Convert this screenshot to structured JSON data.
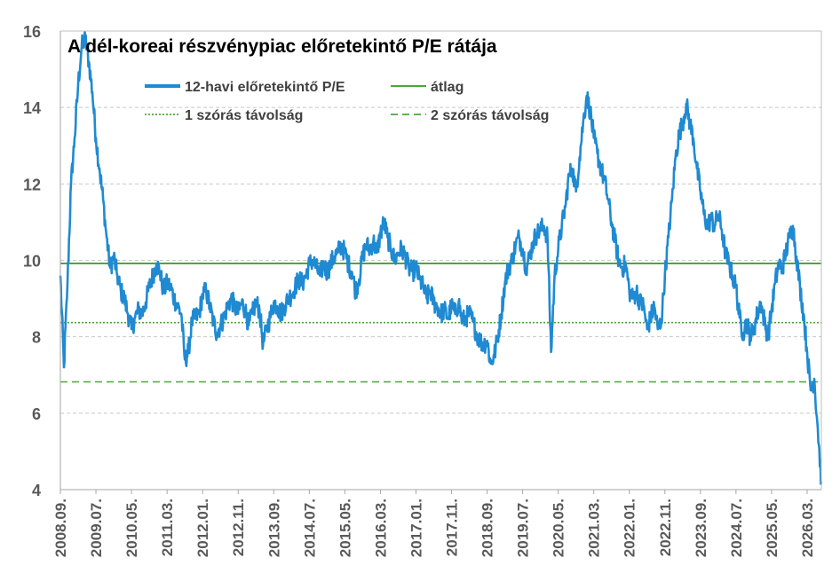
{
  "chart_data": {
    "type": "line",
    "title": "A dél-koreai részvénypiac előretekintő P/E rátája",
    "xlabel": "",
    "ylabel": "",
    "ylim": [
      4,
      16
    ],
    "yticks": [
      4,
      6,
      8,
      10,
      12,
      14,
      16
    ],
    "xlim": [
      "2008.09.",
      "2026.07."
    ],
    "xticks": [
      "2008.09.",
      "2009.07.",
      "2010.05.",
      "2011.03.",
      "2012.01.",
      "2012.11.",
      "2013.09.",
      "2014.07.",
      "2015.05.",
      "2016.03.",
      "2017.01.",
      "2017.11.",
      "2018.09.",
      "2019.07.",
      "2020.05.",
      "2021.03.",
      "2022.01.",
      "2022.11.",
      "2023.09.",
      "2024.07.",
      "2025.05.",
      "2026.03."
    ],
    "grid": "horizontal",
    "legend_position": "top-left",
    "colors": {
      "series": "#1f8ad2",
      "reference": "#4ba63a"
    },
    "reference_lines": [
      {
        "name": "átlag",
        "value": 9.92,
        "style": "solid"
      },
      {
        "name": "1 szórás távolság",
        "value": 8.37,
        "style": "dotted"
      },
      {
        "name": "2 szórás távolság",
        "value": 6.82,
        "style": "dashed"
      }
    ],
    "series": [
      {
        "name": "12-havi előretekintő P/E",
        "points": [
          [
            "2008.09.",
            9.6
          ],
          [
            "2008.10.",
            7.2
          ],
          [
            "2008.11.",
            9.4
          ],
          [
            "2008.12.",
            12.0
          ],
          [
            "2009.01.",
            13.2
          ],
          [
            "2009.02.",
            14.6
          ],
          [
            "2009.03.",
            15.6
          ],
          [
            "2009.04.",
            15.8
          ],
          [
            "2009.05.",
            15.2
          ],
          [
            "2009.06.",
            14.4
          ],
          [
            "2009.07.",
            13.2
          ],
          [
            "2009.08.",
            12.4
          ],
          [
            "2009.09.",
            11.6
          ],
          [
            "2009.10.",
            10.6
          ],
          [
            "2009.11.",
            9.8
          ],
          [
            "2009.12.",
            10.1
          ],
          [
            "2010.01.",
            9.6
          ],
          [
            "2010.02.",
            9.2
          ],
          [
            "2010.03.",
            9.0
          ],
          [
            "2010.04.",
            8.6
          ],
          [
            "2010.05.",
            8.2
          ],
          [
            "2010.06.",
            8.5
          ],
          [
            "2010.07.",
            8.7
          ],
          [
            "2010.08.",
            8.6
          ],
          [
            "2010.09.",
            8.9
          ],
          [
            "2010.10.",
            9.3
          ],
          [
            "2010.11.",
            9.6
          ],
          [
            "2010.12.",
            9.9
          ],
          [
            "2011.01.",
            9.7
          ],
          [
            "2011.02.",
            9.2
          ],
          [
            "2011.03.",
            9.4
          ],
          [
            "2011.04.",
            9.3
          ],
          [
            "2011.05.",
            9.0
          ],
          [
            "2011.06.",
            8.8
          ],
          [
            "2011.07.",
            8.6
          ],
          [
            "2011.08.",
            7.4
          ],
          [
            "2011.09.",
            7.6
          ],
          [
            "2011.10.",
            8.4
          ],
          [
            "2011.11.",
            8.5
          ],
          [
            "2011.12.",
            8.6
          ],
          [
            "2012.01.",
            9.1
          ],
          [
            "2012.02.",
            9.2
          ],
          [
            "2012.03.",
            8.8
          ],
          [
            "2012.04.",
            8.4
          ],
          [
            "2012.05.",
            8.1
          ],
          [
            "2012.06.",
            8.3
          ],
          [
            "2012.07.",
            8.5
          ],
          [
            "2012.08.",
            8.8
          ],
          [
            "2012.09.",
            9.0
          ],
          [
            "2012.10.",
            8.8
          ],
          [
            "2012.11.",
            8.6
          ],
          [
            "2012.12.",
            8.9
          ],
          [
            "2013.01.",
            8.7
          ],
          [
            "2013.02.",
            8.3
          ],
          [
            "2013.03.",
            8.6
          ],
          [
            "2013.04.",
            8.9
          ],
          [
            "2013.05.",
            8.7
          ],
          [
            "2013.06.",
            7.8
          ],
          [
            "2013.07.",
            8.2
          ],
          [
            "2013.08.",
            8.5
          ],
          [
            "2013.09.",
            8.9
          ],
          [
            "2013.10.",
            8.8
          ],
          [
            "2013.11.",
            8.6
          ],
          [
            "2013.12.",
            8.8
          ],
          [
            "2014.01.",
            9.0
          ],
          [
            "2014.02.",
            9.1
          ],
          [
            "2014.03.",
            9.3
          ],
          [
            "2014.04.",
            9.5
          ],
          [
            "2014.05.",
            9.4
          ],
          [
            "2014.06.",
            9.6
          ],
          [
            "2014.07.",
            9.9
          ],
          [
            "2014.08.",
            10.0
          ],
          [
            "2014.09.",
            9.8
          ],
          [
            "2014.10.",
            9.6
          ],
          [
            "2014.11.",
            9.9
          ],
          [
            "2014.12.",
            9.7
          ],
          [
            "2015.01.",
            9.9
          ],
          [
            "2015.02.",
            10.1
          ],
          [
            "2015.03.",
            10.2
          ],
          [
            "2015.04.",
            10.4
          ],
          [
            "2015.05.",
            10.2
          ],
          [
            "2015.06.",
            9.9
          ],
          [
            "2015.07.",
            9.7
          ],
          [
            "2015.08.",
            9.2
          ],
          [
            "2015.09.",
            9.5
          ],
          [
            "2015.10.",
            10.1
          ],
          [
            "2015.11.",
            10.4
          ],
          [
            "2015.12.",
            10.3
          ],
          [
            "2016.01.",
            10.5
          ],
          [
            "2016.02.",
            10.2
          ],
          [
            "2016.03.",
            10.7
          ],
          [
            "2016.04.",
            11.0
          ],
          [
            "2016.05.",
            10.6
          ],
          [
            "2016.06.",
            10.3
          ],
          [
            "2016.07.",
            10.0
          ],
          [
            "2016.08.",
            10.2
          ],
          [
            "2016.09.",
            10.3
          ],
          [
            "2016.10.",
            10.1
          ],
          [
            "2016.11.",
            9.8
          ],
          [
            "2016.12.",
            9.7
          ],
          [
            "2017.01.",
            9.8
          ],
          [
            "2017.02.",
            9.5
          ],
          [
            "2017.03.",
            9.3
          ],
          [
            "2017.04.",
            9.0
          ],
          [
            "2017.05.",
            9.2
          ],
          [
            "2017.06.",
            8.9
          ],
          [
            "2017.07.",
            8.8
          ],
          [
            "2017.08.",
            8.6
          ],
          [
            "2017.09.",
            8.7
          ],
          [
            "2017.10.",
            8.5
          ],
          [
            "2017.11.",
            8.8
          ],
          [
            "2017.12.",
            8.6
          ],
          [
            "2018.01.",
            8.9
          ],
          [
            "2018.02.",
            8.4
          ],
          [
            "2018.03.",
            8.5
          ],
          [
            "2018.04.",
            8.6
          ],
          [
            "2018.05.",
            8.4
          ],
          [
            "2018.06.",
            8.1
          ],
          [
            "2018.07.",
            7.9
          ],
          [
            "2018.08.",
            7.8
          ],
          [
            "2018.09.",
            7.9
          ],
          [
            "2018.10.",
            7.3
          ],
          [
            "2018.11.",
            7.5
          ],
          [
            "2018.12.",
            8.0
          ],
          [
            "2019.01.",
            8.6
          ],
          [
            "2019.02.",
            9.4
          ],
          [
            "2019.03.",
            9.8
          ],
          [
            "2019.04.",
            10.0
          ],
          [
            "2019.05.",
            10.4
          ],
          [
            "2019.06.",
            10.6
          ],
          [
            "2019.07.",
            10.3
          ],
          [
            "2019.08.",
            9.8
          ],
          [
            "2019.09.",
            10.1
          ],
          [
            "2019.10.",
            10.5
          ],
          [
            "2019.11.",
            10.7
          ],
          [
            "2019.12.",
            10.8
          ],
          [
            "2020.01.",
            10.9
          ],
          [
            "2020.02.",
            10.6
          ],
          [
            "2020.03.",
            7.6
          ],
          [
            "2020.04.",
            9.6
          ],
          [
            "2020.05.",
            10.3
          ],
          [
            "2020.06.",
            10.9
          ],
          [
            "2020.07.",
            11.4
          ],
          [
            "2020.08.",
            12.2
          ],
          [
            "2020.09.",
            12.4
          ],
          [
            "2020.10.",
            11.8
          ],
          [
            "2020.11.",
            12.7
          ],
          [
            "2020.12.",
            13.6
          ],
          [
            "2021.01.",
            14.3
          ],
          [
            "2021.02.",
            13.9
          ],
          [
            "2021.03.",
            13.2
          ],
          [
            "2021.04.",
            12.8
          ],
          [
            "2021.05.",
            12.4
          ],
          [
            "2021.06.",
            12.1
          ],
          [
            "2021.07.",
            11.6
          ],
          [
            "2021.08.",
            11.0
          ],
          [
            "2021.09.",
            10.5
          ],
          [
            "2021.10.",
            10.0
          ],
          [
            "2021.11.",
            9.8
          ],
          [
            "2021.12.",
            9.9
          ],
          [
            "2022.01.",
            9.2
          ],
          [
            "2022.02.",
            9.0
          ],
          [
            "2022.03.",
            9.2
          ],
          [
            "2022.04.",
            8.9
          ],
          [
            "2022.05.",
            8.8
          ],
          [
            "2022.06.",
            8.2
          ],
          [
            "2022.07.",
            8.5
          ],
          [
            "2022.08.",
            8.8
          ],
          [
            "2022.09.",
            8.2
          ],
          [
            "2022.10.",
            8.4
          ],
          [
            "2022.11.",
            9.6
          ],
          [
            "2022.12.",
            10.6
          ],
          [
            "2023.01.",
            11.6
          ],
          [
            "2023.02.",
            12.7
          ],
          [
            "2023.03.",
            13.3
          ],
          [
            "2023.04.",
            13.6
          ],
          [
            "2023.05.",
            14.1
          ],
          [
            "2023.06.",
            13.6
          ],
          [
            "2023.07.",
            13.2
          ],
          [
            "2023.08.",
            12.4
          ],
          [
            "2023.09.",
            11.8
          ],
          [
            "2023.10.",
            11.2
          ],
          [
            "2023.11.",
            10.9
          ],
          [
            "2023.12.",
            11.1
          ],
          [
            "2024.01.",
            10.9
          ],
          [
            "2024.02.",
            11.2
          ],
          [
            "2024.03.",
            10.8
          ],
          [
            "2024.04.",
            10.2
          ],
          [
            "2024.05.",
            9.9
          ],
          [
            "2024.06.",
            9.6
          ],
          [
            "2024.07.",
            9.3
          ],
          [
            "2024.08.",
            8.5
          ],
          [
            "2024.09.",
            8.1
          ],
          [
            "2024.10.",
            8.4
          ],
          [
            "2024.11.",
            8.0
          ],
          [
            "2024.12.",
            8.2
          ],
          [
            "2025.01.",
            8.6
          ],
          [
            "2025.02.",
            8.9
          ],
          [
            "2025.03.",
            8.4
          ],
          [
            "2025.04.",
            8.0
          ],
          [
            "2025.05.",
            8.7
          ],
          [
            "2025.06.",
            9.4
          ],
          [
            "2025.07.",
            9.9
          ],
          [
            "2025.08.",
            9.8
          ],
          [
            "2025.09.",
            10.2
          ],
          [
            "2025.10.",
            10.6
          ],
          [
            "2025.11.",
            10.9
          ],
          [
            "2025.12.",
            10.1
          ],
          [
            "2026.01.",
            9.3
          ],
          [
            "2026.02.",
            8.6
          ],
          [
            "2026.03.",
            7.6
          ],
          [
            "2026.04.",
            6.6
          ],
          [
            "2026.05.",
            6.9
          ],
          [
            "2026.06.",
            5.6
          ],
          [
            "2026.07.",
            4.2
          ]
        ]
      }
    ]
  }
}
